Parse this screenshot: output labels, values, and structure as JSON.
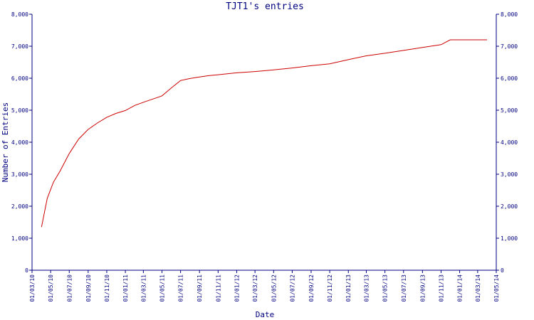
{
  "chart_data": {
    "type": "line",
    "title": "TJT1's entries",
    "xlabel": "Date",
    "ylabel": "Number of Entries",
    "x_tick_labels": [
      "01/03/10",
      "01/05/10",
      "01/07/10",
      "01/09/10",
      "01/11/10",
      "01/01/11",
      "01/03/11",
      "01/05/11",
      "01/07/11",
      "01/09/11",
      "01/11/11",
      "01/01/12",
      "01/03/12",
      "01/05/12",
      "01/07/12",
      "01/09/12",
      "01/11/12",
      "01/01/13",
      "01/03/13",
      "01/05/13",
      "01/07/13",
      "01/09/13",
      "01/11/13",
      "01/01/14",
      "01/03/14",
      "01/05/14"
    ],
    "y_tick_labels": [
      "0",
      "1,000",
      "2,000",
      "3,000",
      "4,000",
      "5,000",
      "6,000",
      "7,000",
      "8,000"
    ],
    "xlim": [
      "2010-03-01",
      "2014-05-01"
    ],
    "ylim": [
      0,
      8000
    ],
    "grid": false,
    "line_color": "#cc0000",
    "axis_color": "#000080",
    "series": [
      {
        "x": [
          "2010-04-01",
          "2010-04-20",
          "2010-05-10",
          "2010-06-01",
          "2010-07-01",
          "2010-08-01",
          "2010-09-01",
          "2010-10-01",
          "2010-11-01",
          "2010-12-01",
          "2011-01-01",
          "2011-02-01",
          "2011-03-01",
          "2011-04-01",
          "2011-05-01",
          "2011-06-01",
          "2011-07-01",
          "2011-08-01",
          "2011-09-01",
          "2011-10-01",
          "2011-11-01",
          "2011-12-01",
          "2012-01-01",
          "2012-03-01",
          "2012-05-01",
          "2012-07-01",
          "2012-09-01",
          "2012-11-01",
          "2013-01-01",
          "2013-03-01",
          "2013-05-01",
          "2013-07-01",
          "2013-09-01",
          "2013-11-01",
          "2013-12-01",
          "2014-01-01",
          "2014-02-01",
          "2014-03-01",
          "2014-04-01"
        ],
        "values": [
          1350,
          2250,
          2750,
          3100,
          3650,
          4100,
          4400,
          4600,
          4780,
          4900,
          4990,
          5150,
          5250,
          5350,
          5450,
          5700,
          5930,
          5990,
          6040,
          6080,
          6110,
          6140,
          6170,
          6210,
          6260,
          6320,
          6390,
          6450,
          6580,
          6700,
          6780,
          6870,
          6960,
          7050,
          7200,
          7200,
          7200,
          7200,
          7200
        ]
      }
    ]
  }
}
